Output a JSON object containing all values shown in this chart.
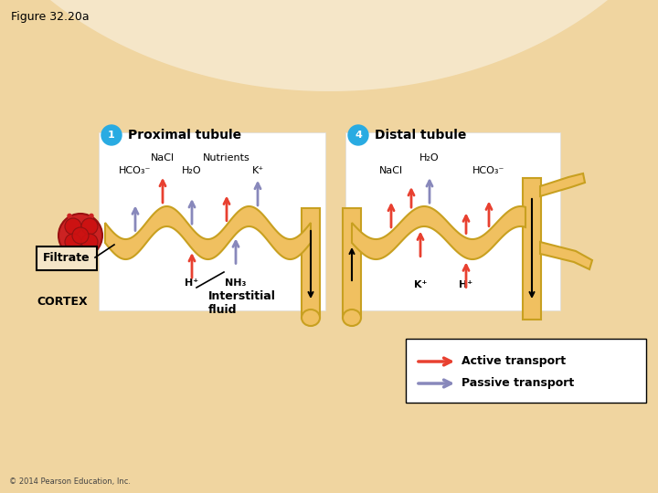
{
  "title": "Figure 32.20a",
  "bg_color": "#F5E6C8",
  "bg_inner": "#F0D8A8",
  "white_bg": "#FFFFFF",
  "tubule_color": "#F0C060",
  "tubule_edge": "#C8A020",
  "active_color": "#E84030",
  "passive_color": "#8888BB",
  "label_bg": "#29ABE2",
  "copyright": "© 2014 Pearson Education, Inc.",
  "active_legend": "Active transport",
  "passive_legend": "Passive transport"
}
